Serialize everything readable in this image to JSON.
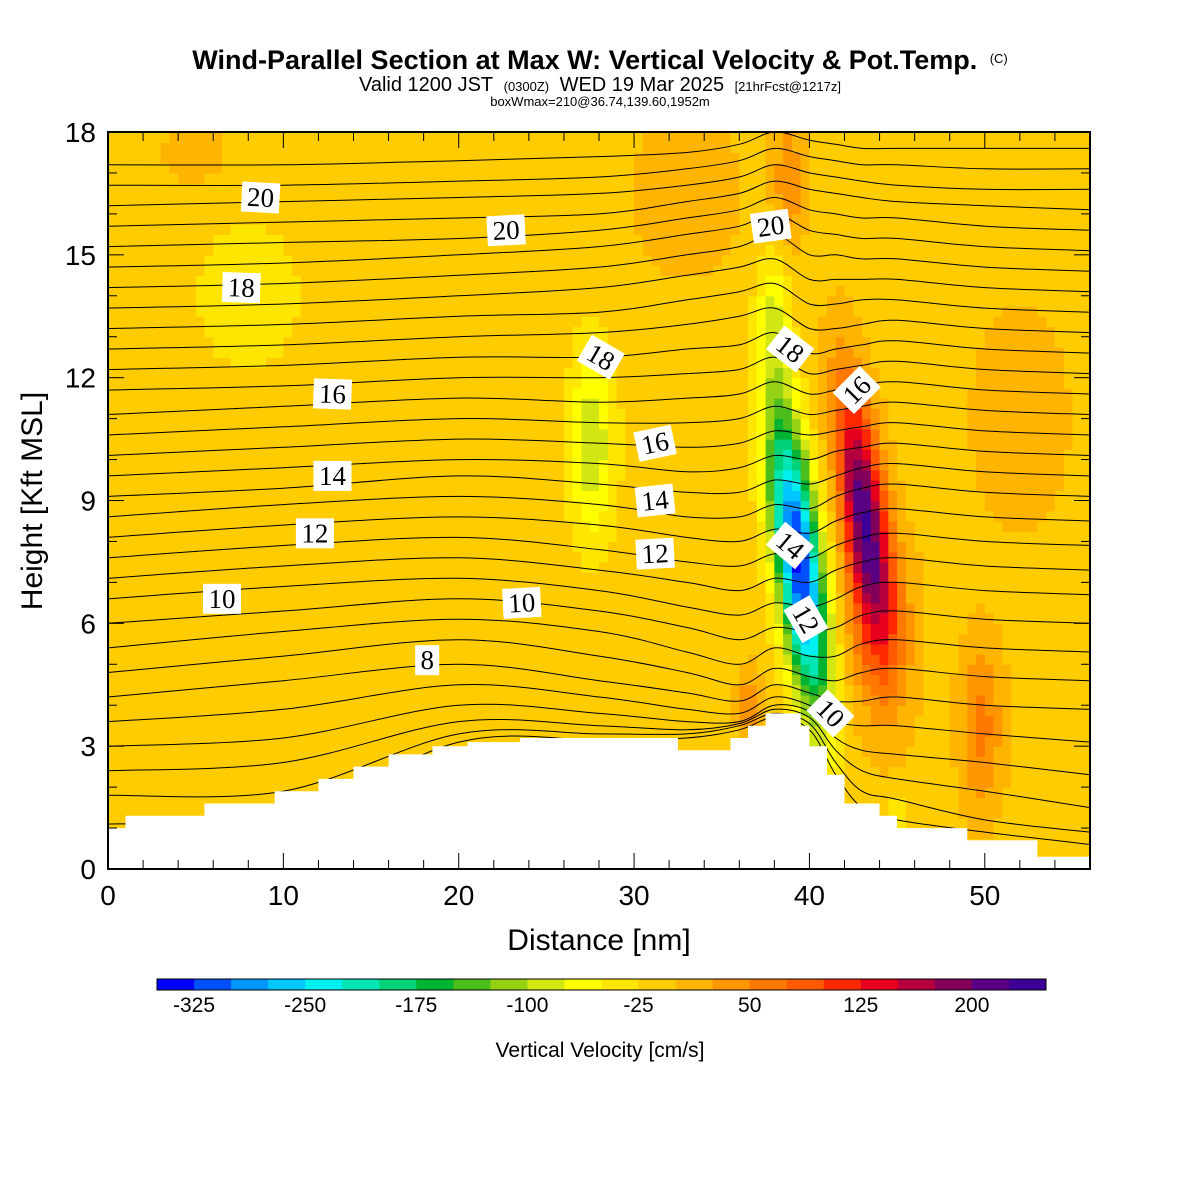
{
  "title": {
    "main": "Wind-Parallel Section at Max W: Vertical Velocity & Pot.Temp.",
    "main_mark": "(C)",
    "valid_prefix": "Valid 1200 JST",
    "valid_utc": "(0300Z)",
    "valid_date": "WED 19 Mar 2025",
    "forecast": "[21hrFcst@1217z]",
    "box": "boxWmax=210@36.74,139.60,1952m"
  },
  "chart_data": {
    "type": "heatmap",
    "xlabel": "Distance [nm]",
    "ylabel": "Height [Kft MSL]",
    "xlim": [
      0,
      56
    ],
    "ylim": [
      0,
      18
    ],
    "x_ticks": [
      0,
      10,
      20,
      30,
      40,
      50
    ],
    "y_ticks": [
      0,
      3,
      6,
      9,
      12,
      15,
      18
    ],
    "grid": false,
    "field": "Vertical Velocity [cm/s]",
    "background_w": -10,
    "terrain": {
      "x": [
        0,
        1,
        1,
        5.5,
        5.5,
        9.5,
        9.5,
        12,
        12,
        14,
        14,
        16,
        16,
        18.5,
        18.5,
        20.5,
        20.5,
        23.5,
        23.5,
        32.5,
        32.5,
        35.5,
        35.5,
        36.5,
        36.5,
        37.5,
        37.5,
        39.5,
        39.5,
        40,
        40,
        41,
        41,
        42,
        42,
        44,
        44,
        45,
        45,
        46,
        46,
        49,
        49,
        50,
        50,
        53,
        53,
        54,
        54,
        56
      ],
      "y": [
        1.0,
        1.0,
        1.3,
        1.3,
        1.6,
        1.6,
        1.9,
        1.9,
        2.2,
        2.2,
        2.5,
        2.5,
        2.8,
        2.8,
        3.0,
        3.0,
        3.1,
        3.1,
        3.2,
        3.2,
        2.9,
        2.9,
        3.2,
        3.2,
        3.5,
        3.5,
        3.8,
        3.8,
        3.5,
        3.5,
        3.0,
        3.0,
        2.3,
        2.3,
        1.6,
        1.6,
        1.3,
        1.3,
        1.0,
        1.0,
        1.0,
        1.0,
        0.7,
        0.7,
        0.7,
        0.7,
        0.3,
        0.3,
        0.3,
        0.3
      ]
    },
    "w_features": [
      {
        "x": 39.4,
        "z": 7.5,
        "sx": 1.3,
        "sz": 3.6,
        "w": -330,
        "tilt": -0.28
      },
      {
        "x": 43.1,
        "z": 8.7,
        "sx": 1.25,
        "sz": 3.1,
        "w": 225,
        "tilt": -0.28
      },
      {
        "x": 27.6,
        "z": 10.4,
        "sx": 1.3,
        "sz": 2.4,
        "w": -85,
        "tilt": 0
      },
      {
        "x": 38.0,
        "z": 13.5,
        "sx": 0.9,
        "sz": 1.8,
        "w": -60,
        "tilt": 0
      },
      {
        "x": 38.8,
        "z": 16.8,
        "sx": 0.9,
        "sz": 1.8,
        "w": 55,
        "tilt": 0
      },
      {
        "x": 44.0,
        "z": 5.8,
        "sx": 2.0,
        "sz": 2.4,
        "w": 60,
        "tilt": 0
      },
      {
        "x": 49.8,
        "z": 3.5,
        "sx": 1.2,
        "sz": 2.0,
        "w": 70,
        "tilt": 0
      },
      {
        "x": 36.6,
        "z": 4.0,
        "sx": 0.7,
        "sz": 0.9,
        "w": 55,
        "tilt": 0
      },
      {
        "x": 8.0,
        "z": 14.0,
        "sx": 4.0,
        "sz": 2.5,
        "w": -25,
        "tilt": 0
      },
      {
        "x": 5.0,
        "z": 17.5,
        "sx": 2.0,
        "sz": 1.0,
        "w": 25,
        "tilt": 0
      },
      {
        "x": 33.0,
        "z": 16.5,
        "sx": 3.0,
        "sz": 2.0,
        "w": 30,
        "tilt": 0
      },
      {
        "x": 52.0,
        "z": 11.0,
        "sx": 3.0,
        "sz": 3.0,
        "w": 25,
        "tilt": 0
      },
      {
        "x": 45.0,
        "z": 1.5,
        "sx": 0.3,
        "sz": 0.5,
        "w": -60,
        "tilt": 0
      }
    ],
    "theta_contours": {
      "units": "C",
      "levels_note": "isentropes every 0.5 C",
      "x": [
        0,
        10,
        20,
        28,
        33,
        36,
        38,
        40,
        41.5,
        43,
        45,
        50,
        56
      ],
      "lines": [
        {
          "level": 5.5,
          "z": [
            1.1,
            1.3,
            3.1,
            3.15,
            3.2,
            3.4,
            3.7,
            3.4,
            2.3,
            1.5,
            1.2,
            0.9,
            0.6
          ]
        },
        {
          "level": 6.0,
          "z": [
            1.8,
            1.9,
            3.3,
            3.3,
            3.3,
            3.5,
            3.8,
            3.55,
            2.6,
            1.9,
            1.7,
            1.2,
            0.9
          ]
        },
        {
          "level": 6.5,
          "z": [
            2.4,
            2.6,
            3.6,
            3.5,
            3.4,
            3.55,
            3.9,
            3.7,
            2.9,
            2.4,
            2.2,
            1.9,
            1.5
          ]
        },
        {
          "level": 7.0,
          "z": [
            3.0,
            3.2,
            4.0,
            3.8,
            3.6,
            3.6,
            4.0,
            3.85,
            3.2,
            2.9,
            2.8,
            2.6,
            2.3
          ]
        },
        {
          "level": 7.5,
          "z": [
            3.6,
            3.9,
            4.5,
            4.2,
            3.9,
            3.8,
            4.2,
            4.0,
            3.6,
            3.5,
            3.5,
            3.3,
            3.1
          ]
        },
        {
          "level": 8.0,
          "z": [
            4.2,
            4.6,
            5.0,
            4.6,
            4.3,
            4.1,
            4.5,
            4.3,
            4.1,
            4.1,
            4.2,
            4.0,
            3.9
          ]
        },
        {
          "level": 8.5,
          "z": [
            4.8,
            5.2,
            5.6,
            5.2,
            4.8,
            4.5,
            4.9,
            4.7,
            4.6,
            4.8,
            4.9,
            4.7,
            4.6
          ]
        },
        {
          "level": 9.0,
          "z": [
            5.4,
            5.8,
            6.1,
            5.8,
            5.3,
            5.0,
            5.4,
            5.2,
            5.2,
            5.5,
            5.6,
            5.4,
            5.3
          ]
        },
        {
          "level": 9.5,
          "z": [
            6.0,
            6.3,
            6.6,
            6.3,
            5.9,
            5.6,
            5.9,
            5.8,
            5.9,
            6.2,
            6.3,
            6.1,
            6.0
          ]
        },
        {
          "level": 10.0,
          "z": [
            6.6,
            6.9,
            7.1,
            6.8,
            6.4,
            6.2,
            6.5,
            6.4,
            6.6,
            6.9,
            7.0,
            6.8,
            6.7
          ]
        },
        {
          "level": 10.5,
          "z": [
            7.1,
            7.4,
            7.6,
            7.3,
            7.0,
            6.8,
            7.1,
            7.0,
            7.3,
            7.5,
            7.6,
            7.4,
            7.3
          ]
        },
        {
          "level": 11.0,
          "z": [
            7.6,
            7.9,
            8.1,
            7.8,
            7.5,
            7.4,
            7.7,
            7.6,
            7.9,
            8.1,
            8.2,
            8.0,
            7.9
          ]
        },
        {
          "level": 11.5,
          "z": [
            8.1,
            8.4,
            8.6,
            8.4,
            8.1,
            8.0,
            8.3,
            8.2,
            8.5,
            8.7,
            8.8,
            8.6,
            8.5
          ]
        },
        {
          "level": 12.0,
          "z": [
            8.6,
            8.9,
            9.1,
            8.9,
            8.6,
            8.6,
            8.9,
            8.8,
            9.1,
            9.3,
            9.4,
            9.2,
            9.1
          ]
        },
        {
          "level": 12.5,
          "z": [
            9.1,
            9.3,
            9.6,
            9.4,
            9.2,
            9.2,
            9.5,
            9.4,
            9.6,
            9.8,
            9.9,
            9.7,
            9.6
          ]
        },
        {
          "level": 13.0,
          "z": [
            9.6,
            9.8,
            10.0,
            9.9,
            9.7,
            9.8,
            10.1,
            10.0,
            10.2,
            10.3,
            10.4,
            10.2,
            10.1
          ]
        },
        {
          "level": 13.5,
          "z": [
            10.1,
            10.3,
            10.5,
            10.4,
            10.3,
            10.4,
            10.7,
            10.6,
            10.7,
            10.8,
            10.9,
            10.7,
            10.6
          ]
        },
        {
          "level": 14.0,
          "z": [
            10.6,
            10.8,
            11.0,
            10.9,
            10.9,
            11.0,
            11.3,
            11.1,
            11.2,
            11.3,
            11.4,
            11.2,
            11.1
          ]
        },
        {
          "level": 14.5,
          "z": [
            11.1,
            11.3,
            11.5,
            11.4,
            11.5,
            11.6,
            11.9,
            11.6,
            11.7,
            11.8,
            11.9,
            11.7,
            11.6
          ]
        },
        {
          "level": 15.0,
          "z": [
            11.7,
            11.8,
            12.0,
            12.0,
            12.1,
            12.2,
            12.5,
            12.1,
            12.2,
            12.3,
            12.4,
            12.2,
            12.1
          ]
        },
        {
          "level": 15.5,
          "z": [
            12.2,
            12.3,
            12.5,
            12.5,
            12.7,
            12.8,
            13.1,
            12.6,
            12.7,
            12.8,
            12.9,
            12.7,
            12.6
          ]
        },
        {
          "level": 16.0,
          "z": [
            12.7,
            12.8,
            13.0,
            13.1,
            13.3,
            13.5,
            13.7,
            13.2,
            13.2,
            13.3,
            13.4,
            13.2,
            13.1
          ]
        },
        {
          "level": 16.5,
          "z": [
            13.2,
            13.3,
            13.5,
            13.6,
            13.9,
            14.1,
            14.3,
            13.8,
            13.8,
            13.9,
            13.9,
            13.7,
            13.6
          ]
        },
        {
          "level": 17.0,
          "z": [
            13.7,
            13.8,
            14.0,
            14.2,
            14.5,
            14.7,
            14.9,
            14.4,
            14.4,
            14.4,
            14.4,
            14.2,
            14.1
          ]
        },
        {
          "level": 17.5,
          "z": [
            14.2,
            14.3,
            14.5,
            14.7,
            15.0,
            15.2,
            15.5,
            15.0,
            15.0,
            14.9,
            14.9,
            14.7,
            14.6
          ]
        },
        {
          "level": 18.0,
          "z": [
            14.7,
            14.8,
            15.0,
            15.2,
            15.5,
            15.7,
            16.0,
            15.6,
            15.5,
            15.4,
            15.4,
            15.2,
            15.1
          ]
        },
        {
          "level": 18.5,
          "z": [
            15.2,
            15.3,
            15.4,
            15.6,
            15.9,
            16.1,
            16.4,
            16.1,
            16.0,
            15.9,
            15.9,
            15.7,
            15.6
          ]
        },
        {
          "level": 19.0,
          "z": [
            15.7,
            15.8,
            15.9,
            16.0,
            16.3,
            16.5,
            16.8,
            16.6,
            16.5,
            16.4,
            16.3,
            16.2,
            16.1
          ]
        },
        {
          "level": 19.5,
          "z": [
            16.2,
            16.3,
            16.4,
            16.5,
            16.7,
            16.9,
            17.2,
            17.0,
            16.9,
            16.8,
            16.7,
            16.6,
            16.6
          ]
        },
        {
          "level": 20.0,
          "z": [
            16.7,
            16.7,
            16.8,
            16.9,
            17.1,
            17.3,
            17.6,
            17.4,
            17.3,
            17.2,
            17.2,
            17.1,
            17.1
          ]
        },
        {
          "level": 20.5,
          "z": [
            17.2,
            17.2,
            17.3,
            17.4,
            17.5,
            17.7,
            18.0,
            17.8,
            17.7,
            17.6,
            17.6,
            17.6,
            17.6
          ]
        }
      ]
    },
    "contour_labels": [
      {
        "text": "20",
        "x": 8.7,
        "z": 16.4,
        "rot": 3
      },
      {
        "text": "20",
        "x": 22.7,
        "z": 15.6,
        "rot": -3
      },
      {
        "text": "20",
        "x": 37.8,
        "z": 15.7,
        "rot": -8
      },
      {
        "text": "18",
        "x": 7.6,
        "z": 14.2,
        "rot": 2
      },
      {
        "text": "18",
        "x": 28.1,
        "z": 12.5,
        "rot": 30
      },
      {
        "text": "18",
        "x": 38.9,
        "z": 12.7,
        "rot": 38
      },
      {
        "text": "16",
        "x": 12.8,
        "z": 11.6,
        "rot": 2
      },
      {
        "text": "16",
        "x": 31.2,
        "z": 10.4,
        "rot": -12
      },
      {
        "text": "16",
        "x": 42.7,
        "z": 11.7,
        "rot": -45
      },
      {
        "text": "14",
        "x": 12.8,
        "z": 9.6,
        "rot": 0
      },
      {
        "text": "14",
        "x": 31.2,
        "z": 9.0,
        "rot": -6
      },
      {
        "text": "14",
        "x": 38.9,
        "z": 7.9,
        "rot": 40
      },
      {
        "text": "12",
        "x": 11.8,
        "z": 8.2,
        "rot": 0
      },
      {
        "text": "12",
        "x": 31.2,
        "z": 7.7,
        "rot": -3
      },
      {
        "text": "12",
        "x": 39.8,
        "z": 6.1,
        "rot": 60
      },
      {
        "text": "10",
        "x": 6.5,
        "z": 6.6,
        "rot": 0
      },
      {
        "text": "10",
        "x": 23.6,
        "z": 6.5,
        "rot": -3
      },
      {
        "text": "10",
        "x": 41.2,
        "z": 3.8,
        "rot": 45
      },
      {
        "text": "8",
        "x": 18.2,
        "z": 5.1,
        "rot": 0
      }
    ],
    "colorbar": {
      "title": "Vertical Velocity [cm/s]",
      "boundaries": [
        -350,
        -325,
        -300,
        -275,
        -250,
        -225,
        -200,
        -175,
        -150,
        -125,
        -100,
        -75,
        -50,
        -25,
        0,
        25,
        50,
        75,
        100,
        125,
        150,
        175,
        200,
        225,
        250
      ],
      "colors": [
        "#0000ff",
        "#0050ff",
        "#0096ff",
        "#00c8ff",
        "#00f0f0",
        "#00e6b4",
        "#00d278",
        "#00b432",
        "#4bbe1e",
        "#96d214",
        "#d2e614",
        "#ffff00",
        "#ffe600",
        "#ffcc00",
        "#ffb400",
        "#ff9600",
        "#ff7800",
        "#ff5a00",
        "#ff2800",
        "#e6001e",
        "#b4003c",
        "#82005a",
        "#5a0082",
        "#3c0096"
      ],
      "tick_values": [
        -325,
        -250,
        -175,
        -100,
        -25,
        50,
        125,
        200
      ],
      "tick_labels": [
        "-325",
        "-250",
        "-175",
        "-100",
        "-25",
        "50",
        "125",
        "200"
      ]
    }
  }
}
